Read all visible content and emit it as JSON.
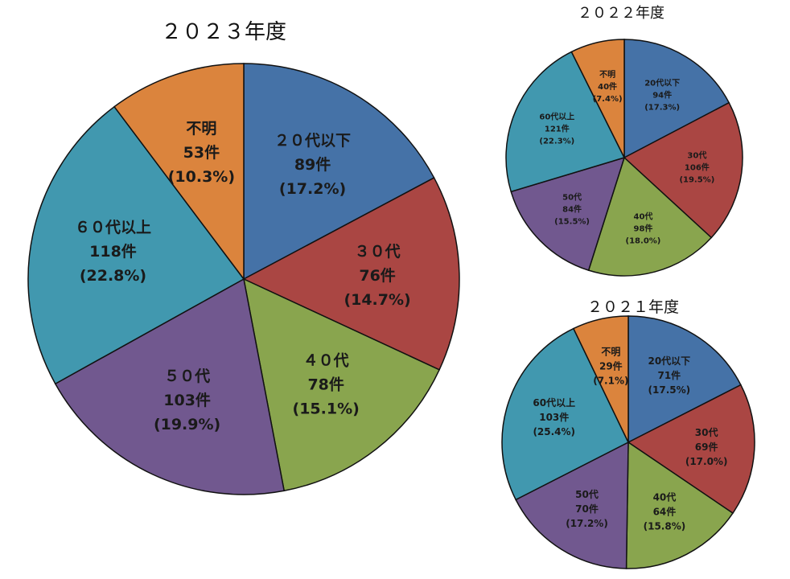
{
  "colors": {
    "20代以下": "#4572A7",
    "30代": "#AA4643",
    "40代": "#89A54E",
    "50代": "#71588F",
    "60代以上": "#4198AF",
    "不明": "#DB843D"
  },
  "chart_data": [
    {
      "type": "pie",
      "title": "２０２３年度",
      "start": "12 o'clock, clockwise",
      "categories": [
        "20代以下",
        "30代",
        "40代",
        "50代",
        "60代以上",
        "不明"
      ],
      "labels": [
        "２０代以下",
        "３０代",
        "４０代",
        "５０代",
        "６０代以上",
        "不明"
      ],
      "values": [
        89,
        76,
        78,
        103,
        118,
        53
      ],
      "count_labels": [
        "89件",
        "76件",
        "78件",
        "103件",
        "118件",
        "53件"
      ],
      "percent_labels": [
        "(17.2%)",
        "(14.7%)",
        "(15.1%)",
        "(19.9%)",
        "(22.8%)",
        "(10.3%)"
      ]
    },
    {
      "type": "pie",
      "title": "２０２２年度",
      "start": "12 o'clock, clockwise",
      "categories": [
        "20代以下",
        "30代",
        "40代",
        "50代",
        "60代以上",
        "不明"
      ],
      "labels": [
        "20代以下",
        "30代",
        "40代",
        "50代",
        "60代以上",
        "不明"
      ],
      "values": [
        94,
        106,
        98,
        84,
        121,
        40
      ],
      "count_labels": [
        "94件",
        "106件",
        "98件",
        "84件",
        "121件",
        "40件"
      ],
      "percent_labels": [
        "(17.3%)",
        "(19.5%)",
        "(18.0%)",
        "(15.5%)",
        "(22.3%)",
        "(7.4%)"
      ]
    },
    {
      "type": "pie",
      "title": "２０２１年度",
      "start": "12 o'clock, clockwise",
      "categories": [
        "20代以下",
        "30代",
        "40代",
        "50代",
        "60代以上",
        "不明"
      ],
      "labels": [
        "20代以下",
        "30代",
        "40代",
        "50代",
        "60代以上",
        "不明"
      ],
      "values": [
        71,
        69,
        64,
        70,
        103,
        29
      ],
      "count_labels": [
        "71件",
        "69件",
        "64件",
        "70件",
        "103件",
        "29件"
      ],
      "percent_labels": [
        "(17.5%)",
        "(17.0%)",
        "(15.8%)",
        "(17.2%)",
        "(25.4%)",
        "(7.1%)"
      ]
    }
  ]
}
